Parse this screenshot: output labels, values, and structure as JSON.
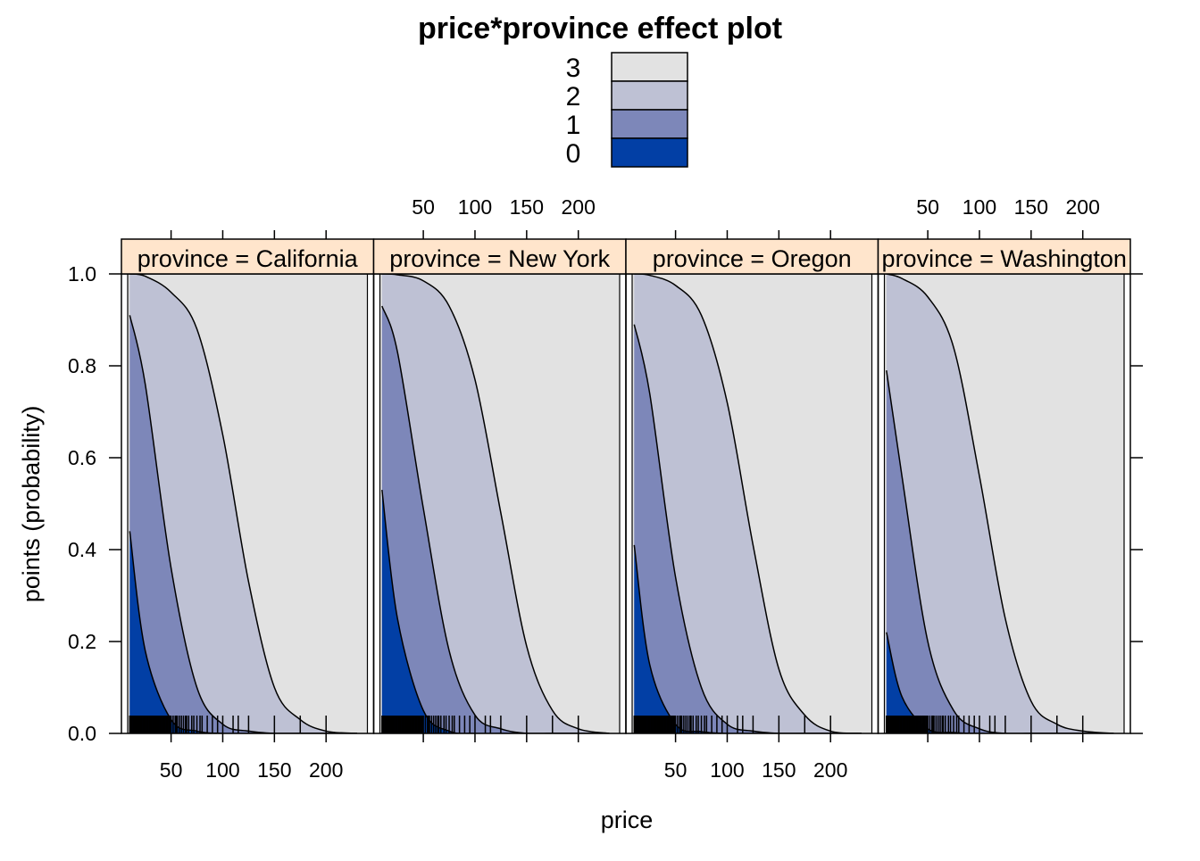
{
  "chart_data": {
    "type": "area",
    "subtype": "stacked-probability (effect plot, lattice panels)",
    "title": "price*province effect plot",
    "xlabel": "price",
    "ylabel": "points (probability)",
    "xlim": [
      8,
      240
    ],
    "ylim": [
      0,
      1
    ],
    "x_ticks": [
      50,
      100,
      150,
      200
    ],
    "y_ticks": [
      0.0,
      0.2,
      0.4,
      0.6,
      0.8,
      1.0
    ],
    "y_tick_labels": [
      "0.0",
      "0.2",
      "0.4",
      "0.6",
      "0.8",
      "1.0"
    ],
    "legend": {
      "placement": "top-center",
      "entries": [
        {
          "label": "3",
          "color": "#E2E2E2"
        },
        {
          "label": "2",
          "color": "#BEC1D4"
        },
        {
          "label": "1",
          "color": "#7D87B9"
        },
        {
          "label": "0",
          "color": "#023FA5"
        }
      ]
    },
    "strip_color": "#FFE5CC",
    "rug": true,
    "category_colors": {
      "0": "#023FA5",
      "1": "#7D87B9",
      "2": "#BEC1D4",
      "3": "#E2E2E2"
    },
    "x": [
      10,
      25,
      50,
      75,
      100,
      125,
      150,
      175,
      200,
      230
    ],
    "panels": [
      {
        "strip_label": "province = California",
        "cumulative_series": [
          {
            "name": "P(points ≤ 0)",
            "values": [
              0.44,
              0.18,
              0.03,
              0.005,
              0.0,
              0.0,
              0.0,
              0.0,
              0.0,
              0.0
            ]
          },
          {
            "name": "P(points ≤ 1)",
            "values": [
              0.91,
              0.76,
              0.36,
              0.1,
              0.02,
              0.005,
              0.0,
              0.0,
              0.0,
              0.0
            ]
          },
          {
            "name": "P(points ≤ 2)",
            "values": [
              1.0,
              0.995,
              0.96,
              0.88,
              0.65,
              0.33,
              0.1,
              0.03,
              0.005,
              0.0
            ]
          }
        ]
      },
      {
        "strip_label": "province = New York",
        "cumulative_series": [
          {
            "name": "P(points ≤ 0)",
            "values": [
              0.53,
              0.25,
              0.05,
              0.005,
              0.0,
              0.0,
              0.0,
              0.0,
              0.0,
              0.0
            ]
          },
          {
            "name": "P(points ≤ 1)",
            "values": [
              0.93,
              0.83,
              0.49,
              0.18,
              0.04,
              0.01,
              0.0,
              0.0,
              0.0,
              0.0
            ]
          },
          {
            "name": "P(points ≤ 2)",
            "values": [
              1.0,
              0.998,
              0.985,
              0.93,
              0.77,
              0.48,
              0.19,
              0.05,
              0.01,
              0.0
            ]
          }
        ]
      },
      {
        "strip_label": "province = Oregon",
        "cumulative_series": [
          {
            "name": "P(points ≤ 0)",
            "values": [
              0.41,
              0.15,
              0.02,
              0.004,
              0.0,
              0.0,
              0.0,
              0.0,
              0.0,
              0.0
            ]
          },
          {
            "name": "P(points ≤ 1)",
            "values": [
              0.89,
              0.74,
              0.34,
              0.1,
              0.02,
              0.005,
              0.0,
              0.0,
              0.0,
              0.0
            ]
          },
          {
            "name": "P(points ≤ 2)",
            "values": [
              1.0,
              0.997,
              0.975,
              0.91,
              0.72,
              0.41,
              0.14,
              0.04,
              0.005,
              0.0
            ]
          }
        ]
      },
      {
        "strip_label": "province = Washington",
        "cumulative_series": [
          {
            "name": "P(points ≤ 0)",
            "values": [
              0.22,
              0.08,
              0.01,
              0.002,
              0.0,
              0.0,
              0.0,
              0.0,
              0.0,
              0.0
            ]
          },
          {
            "name": "P(points ≤ 1)",
            "values": [
              0.79,
              0.56,
              0.2,
              0.05,
              0.01,
              0.0,
              0.0,
              0.0,
              0.0,
              0.0
            ]
          },
          {
            "name": "P(points ≤ 2)",
            "values": [
              1.0,
              0.99,
              0.95,
              0.84,
              0.56,
              0.25,
              0.07,
              0.02,
              0.005,
              0.0
            ]
          }
        ]
      }
    ],
    "rug_x": [
      10,
      11,
      12,
      13,
      14,
      15,
      16,
      17,
      18,
      19,
      20,
      21,
      22,
      23,
      24,
      25,
      26,
      27,
      28,
      29,
      30,
      31,
      32,
      33,
      34,
      35,
      36,
      37,
      38,
      39,
      40,
      41,
      42,
      43,
      44,
      45,
      46,
      47,
      48,
      49,
      50,
      52,
      54,
      55,
      56,
      58,
      60,
      62,
      64,
      65,
      67,
      70,
      72,
      75,
      78,
      80,
      85,
      90,
      95,
      100,
      110,
      115,
      125,
      150,
      175,
      200
    ]
  }
}
